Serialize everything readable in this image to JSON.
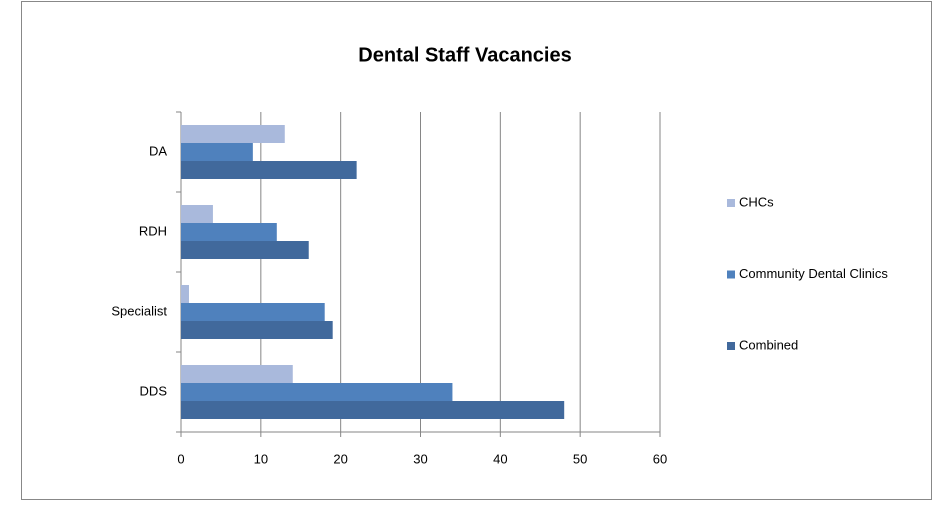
{
  "chart_data": {
    "type": "hbar",
    "title": "Dental Staff Vacancies",
    "categories": [
      "DDS",
      "Specialist",
      "RDH",
      "DA"
    ],
    "series": [
      {
        "name": "CHCs",
        "color": "#a9b9dc",
        "values": [
          14,
          1,
          4,
          13
        ]
      },
      {
        "name": "Community Dental Clinics",
        "color": "#4f81bd",
        "values": [
          34,
          18,
          12,
          9
        ]
      },
      {
        "name": "Combined",
        "color": "#41699c",
        "values": [
          48,
          19,
          16,
          22
        ]
      }
    ],
    "xlim": [
      0,
      60
    ],
    "xticks": [
      0,
      10,
      20,
      30,
      40,
      50,
      60
    ],
    "grid": true,
    "legend": "right"
  }
}
